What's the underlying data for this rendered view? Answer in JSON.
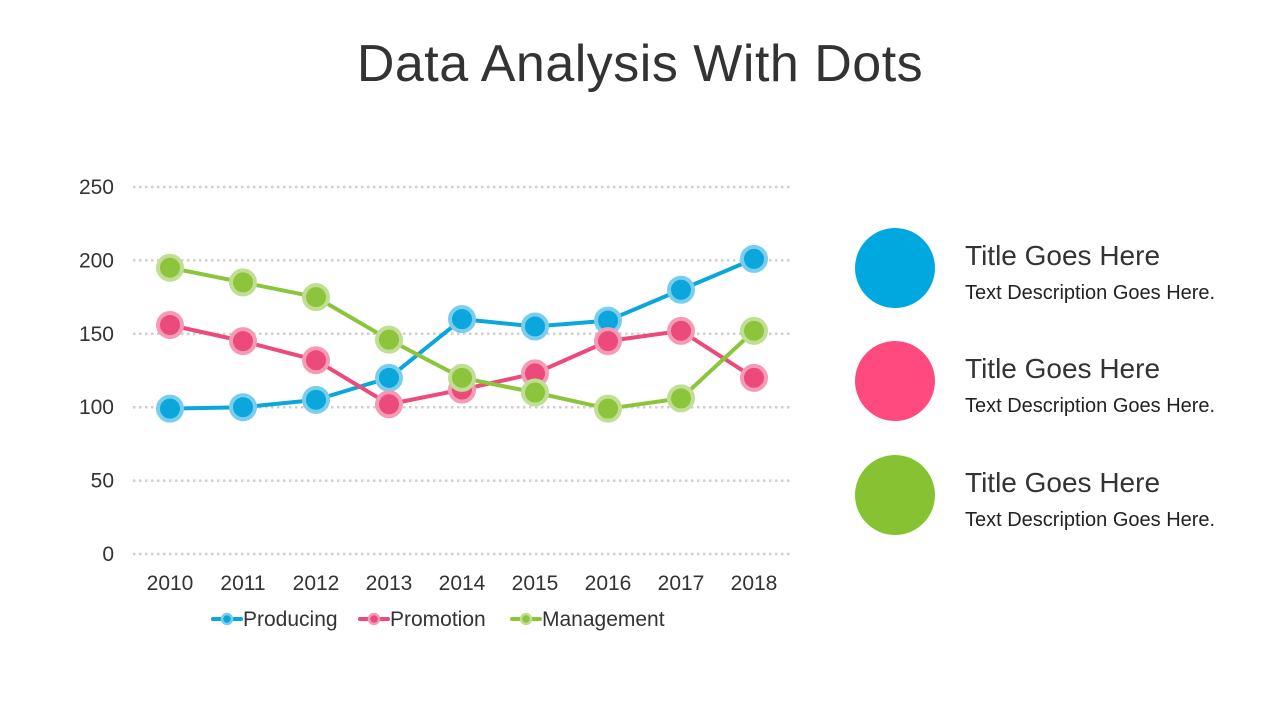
{
  "title": "Data Analysis With Dots",
  "chart_data": {
    "type": "line",
    "title": "",
    "xlabel": "",
    "ylabel": "",
    "ylim": [
      0,
      250
    ],
    "yticks": [
      0,
      50,
      100,
      150,
      200,
      250
    ],
    "grid": true,
    "legend_position": "bottom",
    "categories": [
      "2010",
      "2011",
      "2012",
      "2013",
      "2014",
      "2015",
      "2016",
      "2017",
      "2018"
    ],
    "series": [
      {
        "name": "Producing",
        "color": "#0AA6DC",
        "values": [
          99,
          100,
          105,
          120,
          160,
          155,
          159,
          180,
          201
        ]
      },
      {
        "name": "Promotion",
        "color": "#EC4A7A",
        "values": [
          156,
          145,
          132,
          102,
          112,
          123,
          145,
          152,
          120
        ]
      },
      {
        "name": "Management",
        "color": "#8CC43C",
        "values": [
          195,
          185,
          175,
          146,
          120,
          110,
          99,
          106,
          152
        ]
      }
    ]
  },
  "sidebar": {
    "items": [
      {
        "title": "Title Goes Here",
        "description": "Text Description Goes Here.",
        "color": "#00A8E0"
      },
      {
        "title": "Title Goes Here",
        "description": "Text Description Goes Here.",
        "color": "#FF4A7F"
      },
      {
        "title": "Title Goes Here",
        "description": "Text Description Goes Here.",
        "color": "#86C232"
      }
    ]
  }
}
